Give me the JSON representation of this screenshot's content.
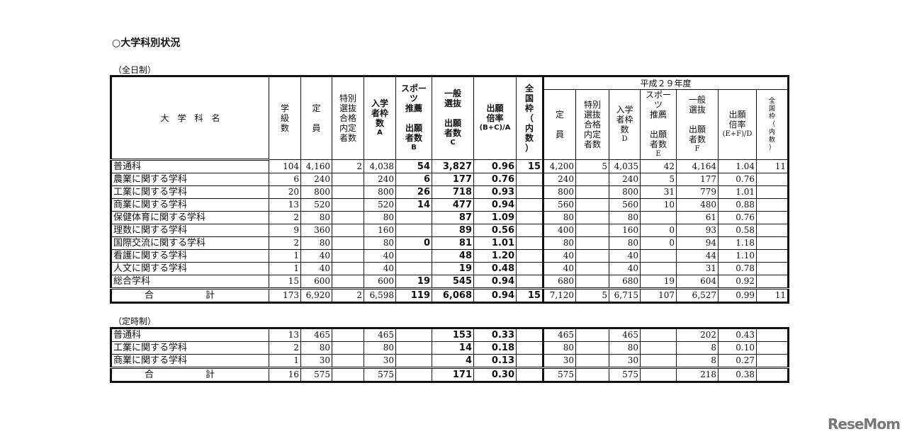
{
  "title": "○大学科別状況",
  "fulltime": {
    "label": "（全日制）",
    "year_header": "平成２９年度",
    "headers": [
      {
        "text": "大　学　科　名"
      },
      {
        "text": "学\n級\n数"
      },
      {
        "text": "定\n\n員"
      },
      {
        "text": "特別\n選抜\n合格\n内定\n者数"
      },
      {
        "text": "入学\n者枠\n数",
        "foot": "A",
        "bold": true
      },
      {
        "text": "スポーツ\n推薦\n\n出願\n者数",
        "foot": "B",
        "bold": true
      },
      {
        "text": "一般\n選抜\n\n出願\n者数",
        "foot": "C",
        "bold": true
      },
      {
        "text": "出願\n倍率",
        "foot": "(B+C)/A",
        "bold": true
      },
      {
        "text": "全\n国\n枠\n（\n内\n数\n）",
        "bold": true
      },
      {
        "text": "定\n\n員"
      },
      {
        "text": "特別\n選抜\n合格\n内定\n者数"
      },
      {
        "text": "入学\n者枠\n数",
        "foot": "D"
      },
      {
        "text": "スポーツ\n推薦\n\n出願\n者数",
        "foot": "E"
      },
      {
        "text": "一般\n選抜\n\n出願\n者数",
        "foot": "F"
      },
      {
        "text": "出願\n倍率",
        "foot": "(E+F)/D"
      },
      {
        "text": "全\n国\n枠\n（\n内\n数\n）",
        "small": true
      }
    ],
    "rows": [
      [
        "普通科",
        "104",
        "4,160",
        "2",
        "4,038",
        "54",
        "3,827",
        "0.96",
        "15",
        "4,200",
        "5",
        "4,035",
        "42",
        "4,164",
        "1.04",
        "11"
      ],
      [
        "農業に関する学科",
        "6",
        "240",
        "",
        "240",
        "6",
        "177",
        "0.76",
        "",
        "240",
        "",
        "240",
        "5",
        "177",
        "0.76",
        ""
      ],
      [
        "工業に関する学科",
        "20",
        "800",
        "",
        "800",
        "26",
        "718",
        "0.93",
        "",
        "800",
        "",
        "800",
        "31",
        "779",
        "1.01",
        ""
      ],
      [
        "商業に関する学科",
        "13",
        "520",
        "",
        "520",
        "14",
        "477",
        "0.94",
        "",
        "560",
        "",
        "560",
        "10",
        "480",
        "0.88",
        ""
      ],
      [
        "保健体育に関する学科",
        "2",
        "80",
        "",
        "80",
        "",
        "87",
        "1.09",
        "",
        "80",
        "",
        "80",
        "",
        "61",
        "0.76",
        ""
      ],
      [
        "理数に関する学科",
        "9",
        "360",
        "",
        "160",
        "",
        "89",
        "0.56",
        "",
        "400",
        "",
        "160",
        "0",
        "93",
        "0.58",
        ""
      ],
      [
        "国際交流に関する学科",
        "2",
        "80",
        "",
        "80",
        "0",
        "81",
        "1.01",
        "",
        "80",
        "",
        "80",
        "0",
        "94",
        "1.18",
        ""
      ],
      [
        "看護に関する学科",
        "1",
        "40",
        "",
        "40",
        "",
        "48",
        "1.20",
        "",
        "40",
        "",
        "40",
        "",
        "44",
        "1.10",
        ""
      ],
      [
        "人文に関する学科",
        "1",
        "40",
        "",
        "40",
        "",
        "19",
        "0.48",
        "",
        "40",
        "",
        "40",
        "",
        "31",
        "0.78",
        ""
      ],
      [
        "総合学科",
        "15",
        "600",
        "",
        "600",
        "19",
        "545",
        "0.94",
        "",
        "680",
        "",
        "680",
        "19",
        "604",
        "0.92",
        ""
      ]
    ],
    "total": [
      "合　計",
      "173",
      "6,920",
      "2",
      "6,598",
      "119",
      "6,068",
      "0.94",
      "15",
      "7,120",
      "5",
      "6,715",
      "107",
      "6,527",
      "0.99",
      "11"
    ]
  },
  "parttime": {
    "label": "（定時制）",
    "rows": [
      [
        "普通科",
        "13",
        "465",
        "",
        "465",
        "",
        "153",
        "0.33",
        "",
        "465",
        "",
        "465",
        "",
        "202",
        "0.43",
        ""
      ],
      [
        "工業に関する学科",
        "2",
        "80",
        "",
        "80",
        "",
        "14",
        "0.18",
        "",
        "80",
        "",
        "80",
        "",
        "8",
        "0.10",
        ""
      ],
      [
        "商業に関する学科",
        "1",
        "30",
        "",
        "30",
        "",
        "4",
        "0.13",
        "",
        "30",
        "",
        "30",
        "",
        "8",
        "0.27",
        ""
      ]
    ],
    "total": [
      "合　計",
      "16",
      "575",
      "",
      "575",
      "",
      "171",
      "0.30",
      "",
      "575",
      "",
      "575",
      "",
      "218",
      "0.38",
      ""
    ]
  },
  "watermark": "ReseMom"
}
